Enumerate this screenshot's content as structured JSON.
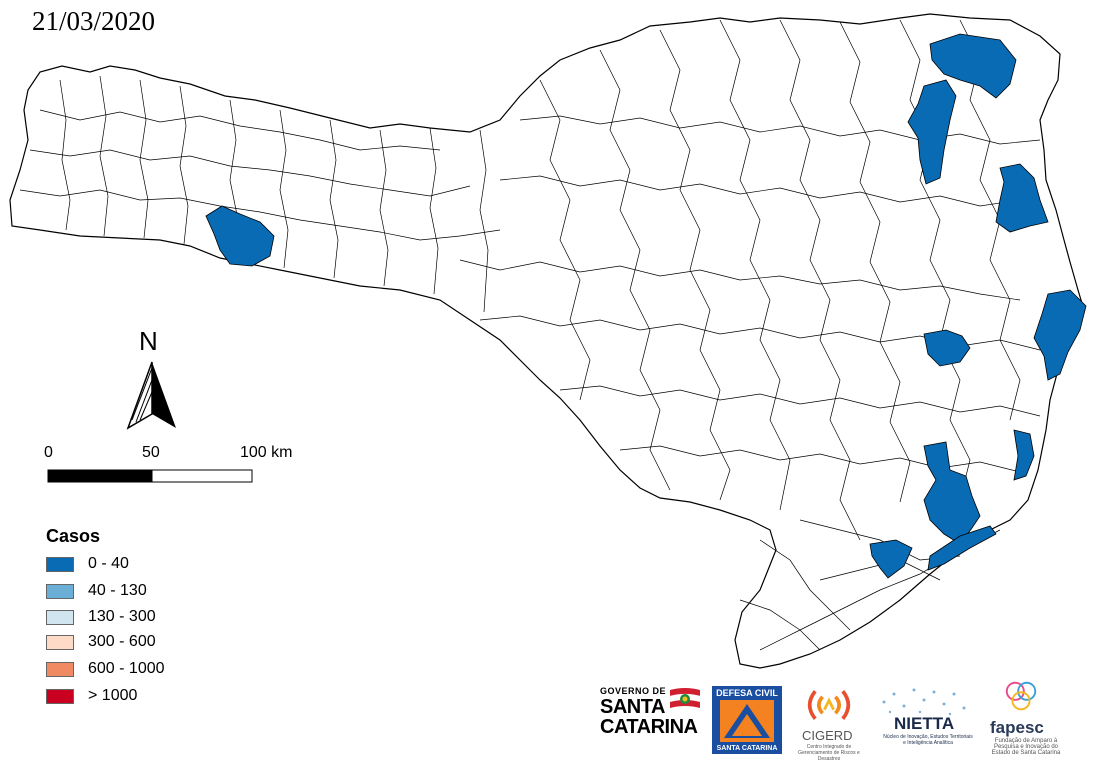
{
  "date": "21/03/2020",
  "north_label": "N",
  "scale": {
    "labels": [
      "0",
      "50",
      "100 km"
    ]
  },
  "legend": {
    "title": "Casos",
    "items": [
      {
        "label": "0 - 40",
        "color": "#0a6bb5"
      },
      {
        "label": "40 - 130",
        "color": "#6baed6"
      },
      {
        "label": "130 - 300",
        "color": "#d1e5f0"
      },
      {
        "label": "300 - 600",
        "color": "#fddbc7"
      },
      {
        "label": "600 - 1000",
        "color": "#ef8a62"
      },
      {
        "label": "> 1000",
        "color": "#ca0020"
      }
    ]
  },
  "map": {
    "state_fill": "#ffffff",
    "border_color": "#000000",
    "highlight_class": "0 - 40",
    "highlight_color": "#0a6bb5"
  },
  "logos": {
    "gov_small": "GOVERNO DE",
    "gov_line1": "SANTA",
    "gov_line2": "CATARINA",
    "defesa_top": "DEFESA CIVIL",
    "defesa_bottom": "SANTA CATARINA",
    "cigerd_name": "CIGERD",
    "cigerd_sub": "Centro Integrado de Gerenciamento de Riscos e Desastres",
    "nietta_name": "NIETTA",
    "nietta_sub": "Núcleo de Inovação, Estudos Territoriais e Inteligência Analítica",
    "fapesc_name": "fapesc",
    "fapesc_sub": "Fundação de Amparo à Pesquisa e Inovação do Estado de Santa Catarina"
  }
}
